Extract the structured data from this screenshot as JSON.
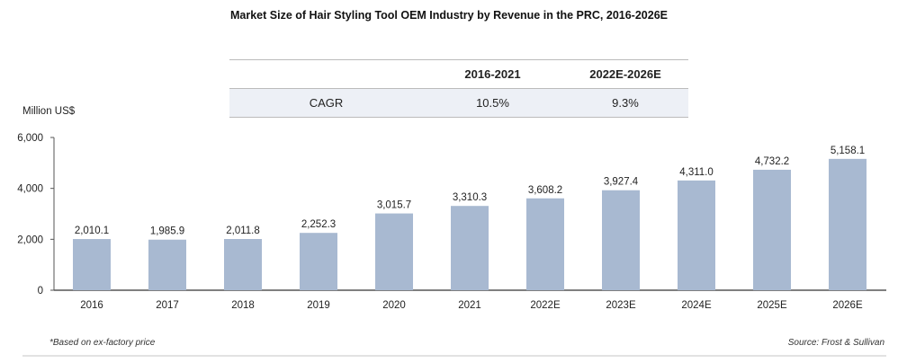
{
  "chart_data": {
    "type": "bar",
    "title": "Market Size of Hair Styling Tool OEM Industry by Revenue in the PRC, 2016-2026E",
    "ylabel": "Million US$",
    "xlabel": "",
    "ylim": [
      0,
      6000
    ],
    "yticks": [
      "0",
      "2,000",
      "4,000",
      "6,000"
    ],
    "ytick_values": [
      0,
      2000,
      4000,
      6000
    ],
    "categories": [
      "2016",
      "2017",
      "2018",
      "2019",
      "2020",
      "2021",
      "2022E",
      "2023E",
      "2024E",
      "2025E",
      "2026E"
    ],
    "values": [
      2010.1,
      1985.9,
      2011.8,
      2252.3,
      3015.7,
      3310.3,
      3608.2,
      3927.4,
      4311.0,
      4732.2,
      5158.1
    ],
    "labels": [
      "2,010.1",
      "1,985.9",
      "2,011.8",
      "2,252.3",
      "3,015.7",
      "3,310.3",
      "3,608.2",
      "3,927.4",
      "4,311.0",
      "4,732.2",
      "5,158.1"
    ],
    "bar_color": "#a8b9d1",
    "grid": false
  },
  "cagr_table": {
    "headers": [
      "",
      "2016-2021",
      "2022E-2026E"
    ],
    "row": [
      "CAGR",
      "10.5%",
      "9.3%"
    ]
  },
  "footnote": "*Based on ex-factory price",
  "source": "Source: Frost & Sullivan"
}
